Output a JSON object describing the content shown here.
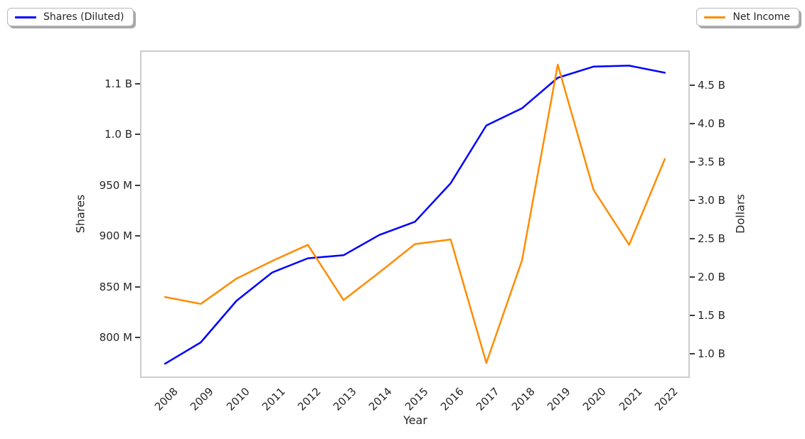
{
  "chart": {
    "background": "#ffffff",
    "spine_color": "#cdcdcd",
    "text_color": "#262626",
    "accent_blue": "#0000ff",
    "accent_orange": "#ff8c00"
  },
  "chart_data": {
    "type": "line",
    "title": "",
    "xlabel": "Year",
    "grid": false,
    "x": [
      2008,
      2009,
      2010,
      2011,
      2012,
      2013,
      2014,
      2015,
      2016,
      2017,
      2018,
      2019,
      2020,
      2021,
      2022
    ],
    "x_ticks": [
      "2008",
      "2009",
      "2010",
      "2011",
      "2012",
      "2013",
      "2014",
      "2015",
      "2016",
      "2017",
      "2018",
      "2019",
      "2020",
      "2021",
      "2022"
    ],
    "x_range": [
      2007.3,
      2022.7
    ],
    "left_axis": {
      "label": "Shares",
      "values_unit": "M",
      "range": [
        760,
        1083
      ],
      "ticks": [
        {
          "value": 800,
          "label": "800 M"
        },
        {
          "value": 850,
          "label": "850 M"
        },
        {
          "value": 900,
          "label": "900 M"
        },
        {
          "value": 950,
          "label": "950 M"
        },
        {
          "value": 1000,
          "label": "1.0 B"
        },
        {
          "value": 1050,
          "label": "1.1 B"
        }
      ]
    },
    "right_axis": {
      "label": "Dollars",
      "values_unit": "B",
      "range": [
        0.685,
        4.955
      ],
      "ticks": [
        {
          "value": 1.0,
          "label": "1.0 B"
        },
        {
          "value": 1.5,
          "label": "1.5 B"
        },
        {
          "value": 2.0,
          "label": "2.0 B"
        },
        {
          "value": 2.5,
          "label": "2.5 B"
        },
        {
          "value": 3.0,
          "label": "3.0 B"
        },
        {
          "value": 3.5,
          "label": "3.5 B"
        },
        {
          "value": 4.0,
          "label": "4.0 B"
        },
        {
          "value": 4.5,
          "label": "4.5 B"
        }
      ]
    },
    "series": [
      {
        "id": "shares-diluted",
        "name": "Shares (Diluted)",
        "axis": "left",
        "color": "#0000ff",
        "values_unit": "M",
        "values": [
          774,
          795,
          836,
          864,
          878,
          881,
          901,
          914,
          952,
          1009,
          1026,
          1056,
          1067,
          1068,
          1061
        ]
      },
      {
        "id": "net-income",
        "name": "Net Income",
        "axis": "right",
        "color": "#ff8c00",
        "values_unit": "B",
        "values": [
          1.74,
          1.65,
          1.98,
          2.21,
          2.42,
          1.7,
          2.06,
          2.43,
          2.49,
          0.88,
          2.22,
          4.77,
          3.14,
          2.42,
          3.54
        ]
      }
    ],
    "legend": {
      "left_entry": "Shares (Diluted)",
      "right_entry": "Net Income"
    }
  }
}
